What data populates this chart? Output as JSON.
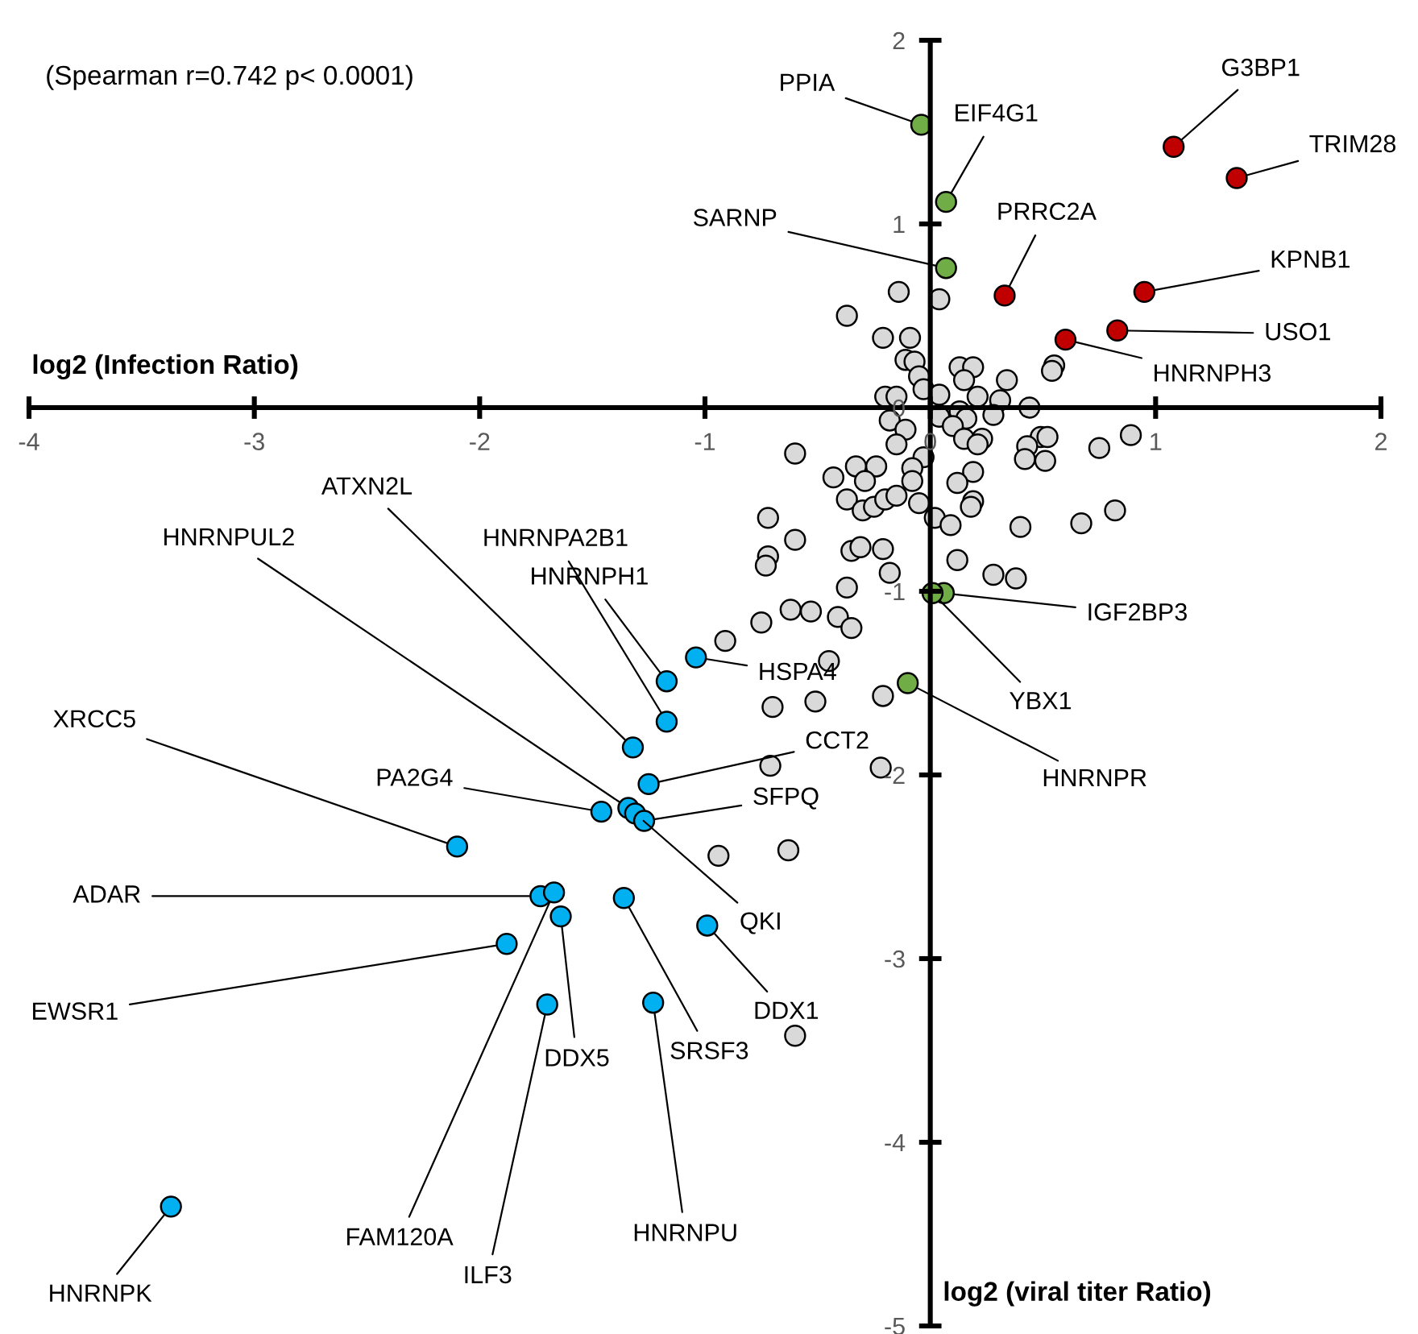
{
  "chart_data": {
    "type": "scatter",
    "xlabel": "log2 (Infection Ratio)",
    "ylabel": "log2 (viral titer Ratio)",
    "xlim": [
      -4,
      2
    ],
    "ylim": [
      -5,
      2
    ],
    "xticks": [
      -4,
      -3,
      -2,
      -1,
      0,
      1,
      2
    ],
    "yticks": [
      -5,
      -4,
      -3,
      -2,
      -1,
      0,
      1,
      2
    ],
    "grid": false,
    "legend": false,
    "marker": "circle",
    "series": [
      {
        "color": "#d9d9d9",
        "x": [
          -0.14,
          0.04,
          -0.37,
          -0.21,
          -0.09,
          -0.11,
          -0.07,
          0.13,
          0.19,
          -0.05,
          0.15,
          0.34,
          0.55,
          0.54,
          -0.03,
          -0.2,
          -0.15,
          0.04,
          0.21,
          0.31,
          0.28,
          0.44,
          0.13,
          0.04,
          0.16,
          -0.18,
          -0.11,
          0.1,
          0.15,
          0.23,
          0.21,
          -0.15,
          0.49,
          0.52,
          0.43,
          0.42,
          0.51,
          0.75,
          0.89,
          -0.6,
          -0.03,
          -0.08,
          -0.24,
          -0.33,
          -0.29,
          -0.43,
          -0.08,
          0.19,
          0.12,
          -0.37,
          -0.3,
          -0.25,
          -0.2,
          -0.15,
          -0.05,
          0.19,
          0.18,
          0.02,
          0.09,
          0.4,
          0.67,
          0.82,
          -0.72,
          -0.6,
          -0.35,
          -0.31,
          -0.21,
          -0.72,
          -0.73,
          0.12,
          -0.18,
          -0.37,
          0.28,
          0.38,
          -0.62,
          -0.53,
          -0.75,
          -0.41,
          -0.35,
          -0.91,
          -0.45,
          -0.21,
          -0.7,
          -0.51,
          -0.71,
          -0.22,
          -0.94,
          -0.63,
          -0.6
        ],
        "values": [
          0.63,
          0.59,
          0.5,
          0.38,
          0.38,
          0.26,
          0.25,
          0.22,
          0.22,
          0.17,
          0.15,
          0.15,
          0.23,
          0.2,
          0.1,
          0.06,
          0.06,
          0.07,
          0.06,
          0.04,
          -0.04,
          0.0,
          -0.02,
          -0.05,
          -0.06,
          -0.07,
          -0.12,
          -0.1,
          -0.17,
          -0.17,
          -0.2,
          -0.2,
          -0.16,
          -0.16,
          -0.21,
          -0.28,
          -0.29,
          -0.22,
          -0.15,
          -0.25,
          -0.27,
          -0.33,
          -0.32,
          -0.32,
          -0.4,
          -0.38,
          -0.4,
          -0.35,
          -0.41,
          -0.5,
          -0.56,
          -0.54,
          -0.5,
          -0.48,
          -0.52,
          -0.51,
          -0.54,
          -0.6,
          -0.64,
          -0.65,
          -0.63,
          -0.56,
          -0.6,
          -0.72,
          -0.78,
          -0.76,
          -0.77,
          -0.81,
          -0.86,
          -0.83,
          -0.9,
          -0.98,
          -0.91,
          -0.93,
          -1.1,
          -1.11,
          -1.17,
          -1.14,
          -1.2,
          -1.27,
          -1.38,
          -1.57,
          -1.63,
          -1.6,
          -1.95,
          -1.96,
          -2.44,
          -2.41,
          -3.42
        ]
      },
      {
        "color": "#70ad47",
        "x": [
          -0.04,
          0.07,
          0.07,
          0.06,
          0.01,
          -0.1
        ],
        "values": [
          1.54,
          1.12,
          0.76,
          -1.01,
          -1.01,
          -1.5
        ]
      },
      {
        "color": "#c00000",
        "x": [
          1.08,
          1.36,
          0.33,
          0.95,
          0.83,
          0.6
        ],
        "values": [
          1.42,
          1.25,
          0.61,
          0.63,
          0.42,
          0.37
        ]
      },
      {
        "color": "#00b0f0",
        "x": [
          -1.17,
          -1.04,
          -1.17,
          -1.32,
          -1.25,
          -1.46,
          -1.34,
          -1.31,
          -1.27,
          -2.1,
          -1.73,
          -1.67,
          -1.88,
          -1.64,
          -1.7,
          -1.36,
          -1.23,
          -0.99,
          -3.37
        ],
        "values": [
          -1.49,
          -1.36,
          -1.71,
          -1.85,
          -2.05,
          -2.2,
          -2.18,
          -2.21,
          -2.25,
          -2.39,
          -2.66,
          -2.64,
          -2.92,
          -2.77,
          -3.25,
          -2.67,
          -3.24,
          -2.82,
          -4.35
        ]
      }
    ],
    "annotations": [
      "(Spearman r=0.742 p< 0.0001)",
      {
        "text": "PPIA",
        "x": -0.04,
        "y": 1.54
      },
      {
        "text": "EIF4G1",
        "x": 0.07,
        "y": 1.12
      },
      {
        "text": "SARNP",
        "x": 0.07,
        "y": 0.76
      },
      {
        "text": "PRRC2A",
        "x": 0.33,
        "y": 0.61
      },
      {
        "text": "G3BP1",
        "x": 1.08,
        "y": 1.42
      },
      {
        "text": "TRIM28",
        "x": 1.36,
        "y": 1.25
      },
      {
        "text": "KPNB1",
        "x": 0.95,
        "y": 0.63
      },
      {
        "text": "USO1",
        "x": 0.83,
        "y": 0.42
      },
      {
        "text": "HNRNPH3",
        "x": 0.6,
        "y": 0.37
      },
      {
        "text": "IGF2BP3",
        "x": 0.06,
        "y": -1.01
      },
      {
        "text": "YBX1",
        "x": 0.01,
        "y": -1.01
      },
      {
        "text": "HNRNPR",
        "x": -0.1,
        "y": -1.5
      },
      {
        "text": "HSPA4",
        "x": -1.04,
        "y": -1.36
      },
      {
        "text": "HNRNPH1",
        "x": -1.17,
        "y": -1.49
      },
      {
        "text": "HNRNPA2B1",
        "x": -1.17,
        "y": -1.71
      },
      {
        "text": "ATXN2L",
        "x": -1.32,
        "y": -1.85
      },
      {
        "text": "HNRNPUL2",
        "x": -1.34,
        "y": -2.18
      },
      {
        "text": "CCT2",
        "x": -1.25,
        "y": -2.05
      },
      {
        "text": "PA2G4",
        "x": -1.46,
        "y": -2.2
      },
      {
        "text": "SFPQ",
        "x": -1.27,
        "y": -2.25
      },
      {
        "text": "QKI",
        "x": -1.31,
        "y": -2.21
      },
      {
        "text": "XRCC5",
        "x": -2.1,
        "y": -2.39
      },
      {
        "text": "ADAR",
        "x": -1.73,
        "y": -2.66
      },
      {
        "text": "EWSR1",
        "x": -1.88,
        "y": -2.92
      },
      {
        "text": "FAM120A",
        "x": -1.67,
        "y": -2.64
      },
      {
        "text": "DDX5",
        "x": -1.64,
        "y": -2.77
      },
      {
        "text": "ILF3",
        "x": -1.7,
        "y": -3.25
      },
      {
        "text": "SRSF3",
        "x": -1.36,
        "y": -2.67
      },
      {
        "text": "HNRNPU",
        "x": -1.23,
        "y": -3.24
      },
      {
        "text": "DDX1",
        "x": -0.99,
        "y": -2.82
      },
      {
        "text": "HNRNPK",
        "x": -3.37,
        "y": -4.35
      }
    ]
  }
}
